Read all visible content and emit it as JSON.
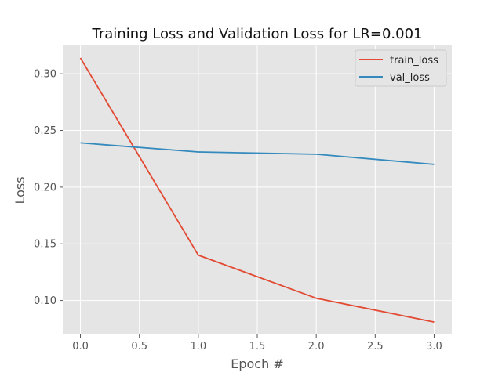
{
  "chart_data": {
    "type": "line",
    "title": "Training Loss and Validation Loss for LR=0.001",
    "xlabel": "Epoch #",
    "ylabel": "Loss",
    "x": [
      0,
      1,
      2,
      3
    ],
    "xlim": [
      -0.15,
      3.15
    ],
    "ylim": [
      0.07,
      0.325
    ],
    "xticks": [
      "0.0",
      "0.5",
      "1.0",
      "1.5",
      "2.0",
      "2.5",
      "3.0"
    ],
    "yticks": [
      "0.10",
      "0.15",
      "0.20",
      "0.25",
      "0.30"
    ],
    "grid": true,
    "legend_position": "top-right",
    "series": [
      {
        "name": "train_loss",
        "color": "#E24A33",
        "values": [
          0.314,
          0.14,
          0.102,
          0.081
        ]
      },
      {
        "name": "val_loss",
        "color": "#348ABD",
        "values": [
          0.239,
          0.231,
          0.229,
          0.22
        ]
      }
    ]
  }
}
